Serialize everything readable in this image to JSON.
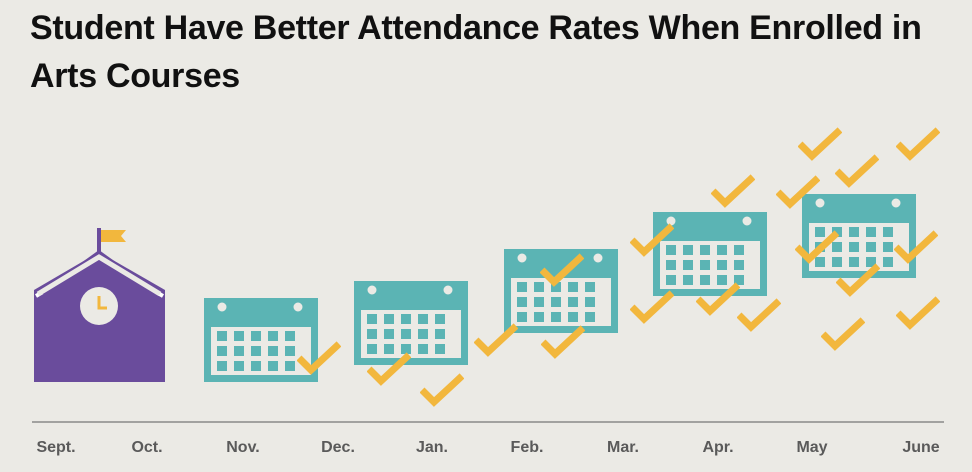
{
  "title": "Student Have Better Attendance Rates When Enrolled in Arts Courses",
  "months": [
    "Sept.",
    "Oct.",
    "Nov.",
    "Dec.",
    "Jan.",
    "Feb.",
    "Mar.",
    "Apr.",
    "May",
    "June"
  ],
  "icons": {
    "school": "school-building-icon",
    "calendar": "calendar-icon",
    "check": "checkmark-icon",
    "flag": "flag-icon",
    "clock": "clock-icon"
  },
  "colors": {
    "background": "#ebeae5",
    "school": "#6a4c9c",
    "calendar": "#5bb4b4",
    "check": "#f2b73d",
    "axis": "#8a8a8a",
    "text": "#111111"
  }
}
